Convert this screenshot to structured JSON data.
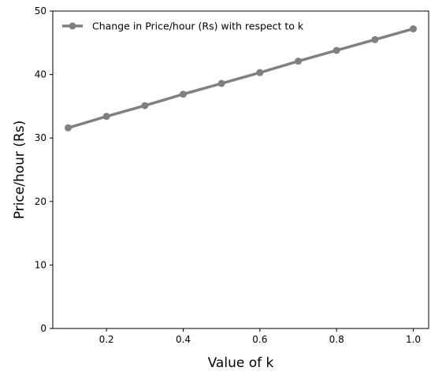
{
  "chart_data": {
    "type": "line",
    "title": "",
    "xlabel": "Value of k",
    "ylabel": "Price/hour (Rs)",
    "xlim": [
      0.06,
      1.04
    ],
    "ylim": [
      0,
      50
    ],
    "x_ticks": [
      0.2,
      0.4,
      0.6,
      0.8,
      1.0
    ],
    "x_tick_labels": [
      "0.2",
      "0.4",
      "0.6",
      "0.8",
      "1.0"
    ],
    "y_ticks": [
      0,
      10,
      20,
      30,
      40,
      50
    ],
    "y_tick_labels": [
      "0",
      "10",
      "20",
      "30",
      "40",
      "50"
    ],
    "grid": false,
    "legend_position": "top-left",
    "series": [
      {
        "name": "Change in Price/hour (Rs) with respect to k",
        "color": "#808080",
        "marker": "circle",
        "x": [
          0.1,
          0.2,
          0.3,
          0.4,
          0.5,
          0.6,
          0.7,
          0.8,
          0.9,
          1.0
        ],
        "values": [
          31.6,
          33.4,
          35.1,
          36.9,
          38.6,
          40.3,
          42.1,
          43.8,
          45.5,
          47.2
        ]
      }
    ]
  }
}
